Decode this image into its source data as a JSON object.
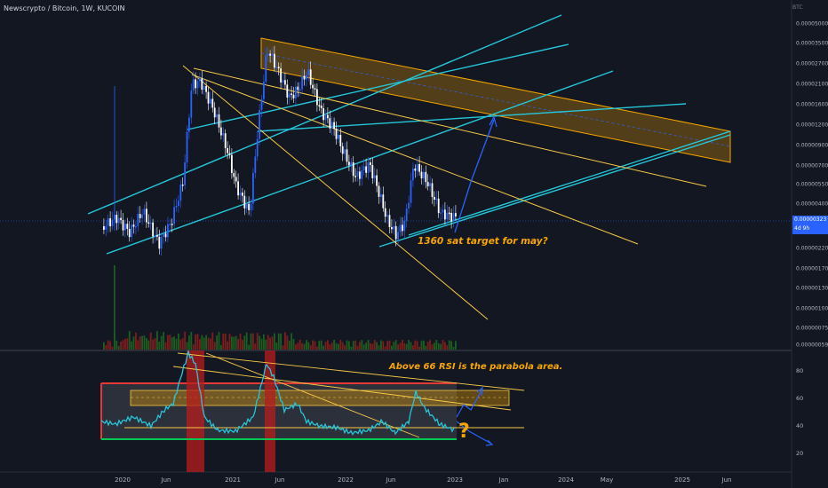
{
  "header": {
    "title": "Newscrypto / Bitcoin, 1W, KUCOIN",
    "quote_currency": "BTC"
  },
  "price_axis": {
    "labels": [
      "0.00005000",
      "0.00003500",
      "0.00002700",
      "0.00002100",
      "0.00001600",
      "0.00001200",
      "0.00000900",
      "0.00000700",
      "0.00000550",
      "0.00000400",
      "0.00000280",
      "0.00000220",
      "0.00000170",
      "0.00000130",
      "0.00000100",
      "0.00000075",
      "0.00000059"
    ],
    "current_price": "0.00000323",
    "countdown": "4d 9h"
  },
  "rsi_axis": {
    "labels": [
      "80",
      "60",
      "40",
      "20"
    ]
  },
  "time_axis": {
    "labels": [
      "2020",
      "Jun",
      "2021",
      "Jun",
      "2022",
      "Jun",
      "2023",
      "Jan",
      "2024",
      "May",
      "2025",
      "Jun"
    ]
  },
  "annotations": {
    "price_target": "1360 sat target for may?",
    "rsi_note": "Above 66 RSI is the parabola area.",
    "question_mark": "?"
  },
  "colors": {
    "background": "#131722",
    "up_candle": "#2962ff",
    "down_candle": "#ffffff",
    "channel_lines": "#26c6da",
    "trend_lines": "#f7c948",
    "annotation": "#f7a600",
    "rsi_line": "#26c6da",
    "rsi_overbought_box": "#e53935",
    "rsi_support": "#00c853",
    "arrows": "#2962ff"
  }
}
